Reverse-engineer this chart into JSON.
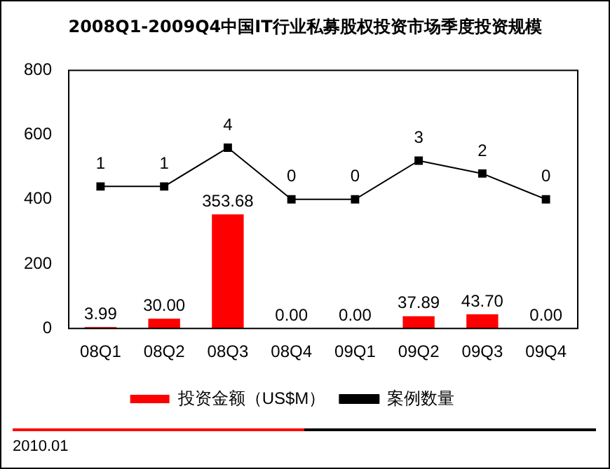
{
  "chart_data": {
    "type": "bar",
    "title": "2008Q1-2009Q4中国IT行业私募股权投资市场季度投资规模",
    "categories": [
      "08Q1",
      "08Q2",
      "08Q3",
      "08Q4",
      "09Q1",
      "09Q2",
      "09Q3",
      "09Q4"
    ],
    "series": [
      {
        "name": "投资金额（US$M）",
        "color": "#ff0000",
        "values": [
          3.99,
          30.0,
          353.68,
          0.0,
          0.0,
          37.89,
          43.7,
          0.0
        ],
        "value_labels": [
          "3.99",
          "30.00",
          "353.68",
          "0.00",
          "0.00",
          "37.89",
          "43.70",
          "0.00"
        ]
      },
      {
        "name": "案例数量",
        "type": "line",
        "axis": "y2",
        "color": "#000000",
        "values": [
          1,
          1,
          4,
          0,
          0,
          3,
          2,
          0
        ],
        "value_labels": [
          "1",
          "1",
          "4",
          "0",
          "0",
          "3",
          "2",
          "0"
        ]
      }
    ],
    "ylim": [
      0,
      800
    ],
    "yticks": [
      0,
      200,
      400,
      600,
      800
    ],
    "y2lim": [
      -10,
      10
    ],
    "grid": false,
    "legend": "bottom",
    "marker": "square",
    "line_style": "solid",
    "annotations": [
      "2010.01"
    ]
  }
}
